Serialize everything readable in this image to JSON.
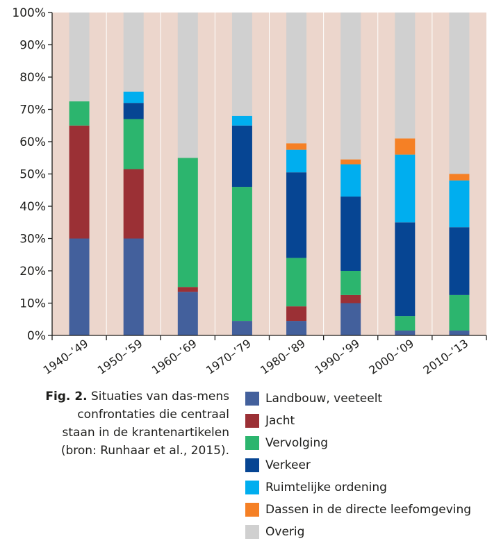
{
  "chart_data": {
    "type": "bar",
    "stacked": true,
    "categories": [
      "1940–’49",
      "1950–’59",
      "1960–’69",
      "1970–’79",
      "1980–’89",
      "1990–’99",
      "2000–’09",
      "2010–’13"
    ],
    "series": [
      {
        "name": "Landbouw, veeteelt",
        "color": "#43609c",
        "values": [
          30,
          30,
          13.5,
          4.5,
          4.5,
          10,
          1.5,
          1.5
        ]
      },
      {
        "name": "Jacht",
        "color": "#9b3035",
        "values": [
          35,
          21.5,
          1.5,
          0,
          4.5,
          2.5,
          0,
          0
        ]
      },
      {
        "name": "Vervolging",
        "color": "#2cb56e",
        "values": [
          7.5,
          15.5,
          40,
          41.5,
          15,
          7.5,
          4.5,
          11
        ]
      },
      {
        "name": "Verkeer",
        "color": "#064593",
        "values": [
          0,
          5,
          0,
          19,
          26.5,
          23,
          29,
          21
        ]
      },
      {
        "name": "Ruimtelijke ordening",
        "color": "#00aeef",
        "values": [
          0,
          3.5,
          0,
          3,
          7,
          10,
          21,
          14.5
        ]
      },
      {
        "name": "Dassen in de directe leefomgeving",
        "color": "#f58025",
        "values": [
          0,
          0,
          0,
          0,
          2,
          1.5,
          5,
          2
        ]
      },
      {
        "name": "Overig",
        "color": "#d0d0d0",
        "values": [
          27.5,
          24.5,
          45,
          32,
          40.5,
          45.5,
          39,
          50
        ]
      }
    ],
    "yticks": [
      "0%",
      "10%",
      "20%",
      "30%",
      "40%",
      "50%",
      "60%",
      "70%",
      "80%",
      "90%",
      "100%"
    ],
    "ylim": [
      0,
      100
    ],
    "background_color": "#ecd6cc",
    "grid": false,
    "legend_position": "bottom-right"
  },
  "caption": {
    "label": "Fig. 2.",
    "text": " Situaties van das-mens confrontaties die centraal staan in de krantenartikelen (bron: Runhaar et al., 2015)."
  }
}
